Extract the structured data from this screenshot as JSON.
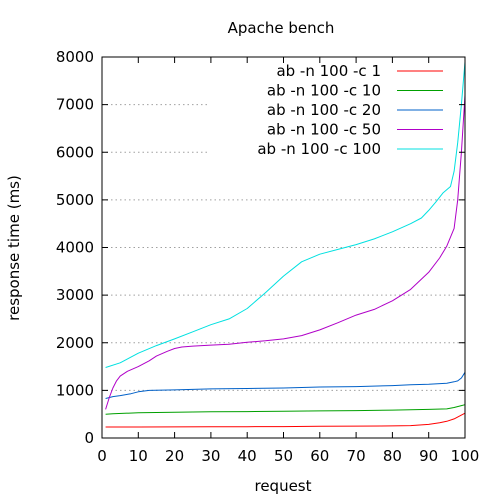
{
  "chart_data": {
    "type": "line",
    "title": "Apache bench",
    "xlabel": "request",
    "ylabel": "response time (ms)",
    "xlim": [
      0,
      100
    ],
    "ylim": [
      0,
      8000
    ],
    "xticks": [
      0,
      10,
      20,
      30,
      40,
      50,
      60,
      70,
      80,
      90,
      100
    ],
    "yticks": [
      0,
      1000,
      2000,
      3000,
      4000,
      5000,
      6000,
      7000,
      8000
    ],
    "xtick_labels": [
      "0",
      "10",
      "20",
      "30",
      "40",
      "50",
      "60",
      "70",
      "80",
      "90",
      "100"
    ],
    "ytick_labels": [
      "0",
      "1000",
      "2000",
      "3000",
      "4000",
      "5000",
      "6000",
      "7000",
      "8000"
    ],
    "grid": true,
    "legend_position": "top-right",
    "series": [
      {
        "name": "ab -n 100 -c 1",
        "color": "#ff0000",
        "points": [
          [
            1,
            230
          ],
          [
            10,
            232
          ],
          [
            20,
            234
          ],
          [
            30,
            236
          ],
          [
            40,
            238
          ],
          [
            50,
            240
          ],
          [
            60,
            245
          ],
          [
            70,
            250
          ],
          [
            80,
            255
          ],
          [
            85,
            260
          ],
          [
            90,
            285
          ],
          [
            93,
            320
          ],
          [
            95,
            350
          ],
          [
            97,
            400
          ],
          [
            99,
            480
          ],
          [
            100,
            520
          ]
        ]
      },
      {
        "name": "ab -n 100 -c 10",
        "color": "#00a000",
        "points": [
          [
            1,
            500
          ],
          [
            3,
            510
          ],
          [
            10,
            530
          ],
          [
            20,
            540
          ],
          [
            30,
            550
          ],
          [
            40,
            555
          ],
          [
            50,
            560
          ],
          [
            60,
            570
          ],
          [
            70,
            575
          ],
          [
            80,
            585
          ],
          [
            90,
            600
          ],
          [
            95,
            610
          ],
          [
            97,
            640
          ],
          [
            99,
            680
          ],
          [
            100,
            700
          ]
        ]
      },
      {
        "name": "ab -n 100 -c 20",
        "color": "#0060c8",
        "points": [
          [
            1,
            830
          ],
          [
            3,
            870
          ],
          [
            5,
            890
          ],
          [
            8,
            930
          ],
          [
            10,
            970
          ],
          [
            13,
            1000
          ],
          [
            20,
            1010
          ],
          [
            30,
            1030
          ],
          [
            40,
            1040
          ],
          [
            50,
            1050
          ],
          [
            60,
            1070
          ],
          [
            70,
            1080
          ],
          [
            80,
            1100
          ],
          [
            85,
            1120
          ],
          [
            90,
            1130
          ],
          [
            95,
            1150
          ],
          [
            97,
            1180
          ],
          [
            98,
            1200
          ],
          [
            99,
            1260
          ],
          [
            100,
            1380
          ]
        ]
      },
      {
        "name": "ab -n 100 -c 50",
        "color": "#b000c8",
        "points": [
          [
            1,
            600
          ],
          [
            2,
            850
          ],
          [
            3,
            1050
          ],
          [
            4,
            1200
          ],
          [
            5,
            1300
          ],
          [
            7,
            1400
          ],
          [
            10,
            1500
          ],
          [
            13,
            1620
          ],
          [
            15,
            1720
          ],
          [
            18,
            1820
          ],
          [
            20,
            1880
          ],
          [
            22,
            1910
          ],
          [
            25,
            1930
          ],
          [
            30,
            1950
          ],
          [
            35,
            1970
          ],
          [
            40,
            2010
          ],
          [
            45,
            2040
          ],
          [
            50,
            2080
          ],
          [
            55,
            2150
          ],
          [
            60,
            2270
          ],
          [
            65,
            2420
          ],
          [
            70,
            2580
          ],
          [
            75,
            2700
          ],
          [
            80,
            2880
          ],
          [
            85,
            3120
          ],
          [
            90,
            3480
          ],
          [
            93,
            3780
          ],
          [
            95,
            4030
          ],
          [
            97,
            4400
          ],
          [
            98,
            5000
          ],
          [
            99,
            6000
          ],
          [
            100,
            7200
          ]
        ]
      },
      {
        "name": "ab -n 100 -c 100",
        "color": "#00e0e0",
        "points": [
          [
            1,
            1480
          ],
          [
            5,
            1580
          ],
          [
            10,
            1780
          ],
          [
            15,
            1940
          ],
          [
            20,
            2080
          ],
          [
            25,
            2230
          ],
          [
            30,
            2380
          ],
          [
            35,
            2500
          ],
          [
            40,
            2720
          ],
          [
            45,
            3050
          ],
          [
            50,
            3400
          ],
          [
            55,
            3700
          ],
          [
            60,
            3860
          ],
          [
            65,
            3960
          ],
          [
            70,
            4060
          ],
          [
            75,
            4180
          ],
          [
            80,
            4330
          ],
          [
            85,
            4500
          ],
          [
            88,
            4620
          ],
          [
            90,
            4780
          ],
          [
            92,
            4960
          ],
          [
            94,
            5150
          ],
          [
            96,
            5280
          ],
          [
            97,
            5600
          ],
          [
            98,
            6200
          ],
          [
            99,
            7000
          ],
          [
            100,
            7900
          ]
        ]
      }
    ]
  }
}
